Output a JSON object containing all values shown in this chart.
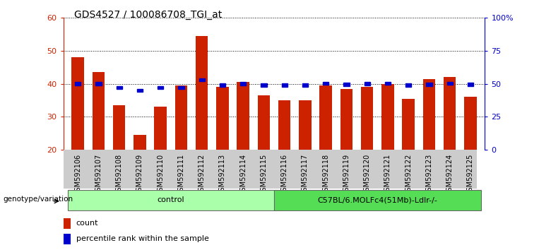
{
  "title": "GDS4527 / 100086708_TGI_at",
  "samples": [
    "GSM592106",
    "GSM592107",
    "GSM592108",
    "GSM592109",
    "GSM592110",
    "GSM592111",
    "GSM592112",
    "GSM592113",
    "GSM592114",
    "GSM592115",
    "GSM592116",
    "GSM592117",
    "GSM592118",
    "GSM592119",
    "GSM592120",
    "GSM592121",
    "GSM592122",
    "GSM592123",
    "GSM592124",
    "GSM592125"
  ],
  "bar_values": [
    48.0,
    43.5,
    33.5,
    24.5,
    33.0,
    39.5,
    54.5,
    39.0,
    40.5,
    36.5,
    35.0,
    35.0,
    39.5,
    38.5,
    39.0,
    40.0,
    35.5,
    41.5,
    42.0,
    36.0
  ],
  "percentile_values": [
    50.0,
    50.0,
    47.0,
    45.0,
    47.0,
    47.0,
    53.0,
    49.0,
    50.0,
    49.0,
    49.0,
    49.0,
    50.5,
    49.5,
    50.0,
    50.5,
    49.0,
    49.5,
    50.5,
    49.5
  ],
  "bar_color": "#cc2200",
  "percentile_color": "#0000cc",
  "ymin": 20,
  "ymax": 60,
  "yticks": [
    20,
    30,
    40,
    50,
    60
  ],
  "y2min": 0,
  "y2max": 100,
  "y2ticks": [
    0,
    25,
    50,
    75,
    100
  ],
  "groups": [
    {
      "label": "control",
      "start": 0,
      "end": 9,
      "color": "#aaffaa"
    },
    {
      "label": "C57BL/6.MOLFc4(51Mb)-Ldlr-/-",
      "start": 10,
      "end": 19,
      "color": "#55dd55"
    }
  ],
  "genotype_label": "genotype/variation",
  "legend_count": "count",
  "legend_percentile": "percentile rank within the sample",
  "title_fontsize": 10,
  "tick_label_fontsize": 7,
  "axis_color_left": "#cc2200",
  "axis_color_right": "#0000cc",
  "bg_color": "#ffffff",
  "tick_bg_color": "#cccccc"
}
